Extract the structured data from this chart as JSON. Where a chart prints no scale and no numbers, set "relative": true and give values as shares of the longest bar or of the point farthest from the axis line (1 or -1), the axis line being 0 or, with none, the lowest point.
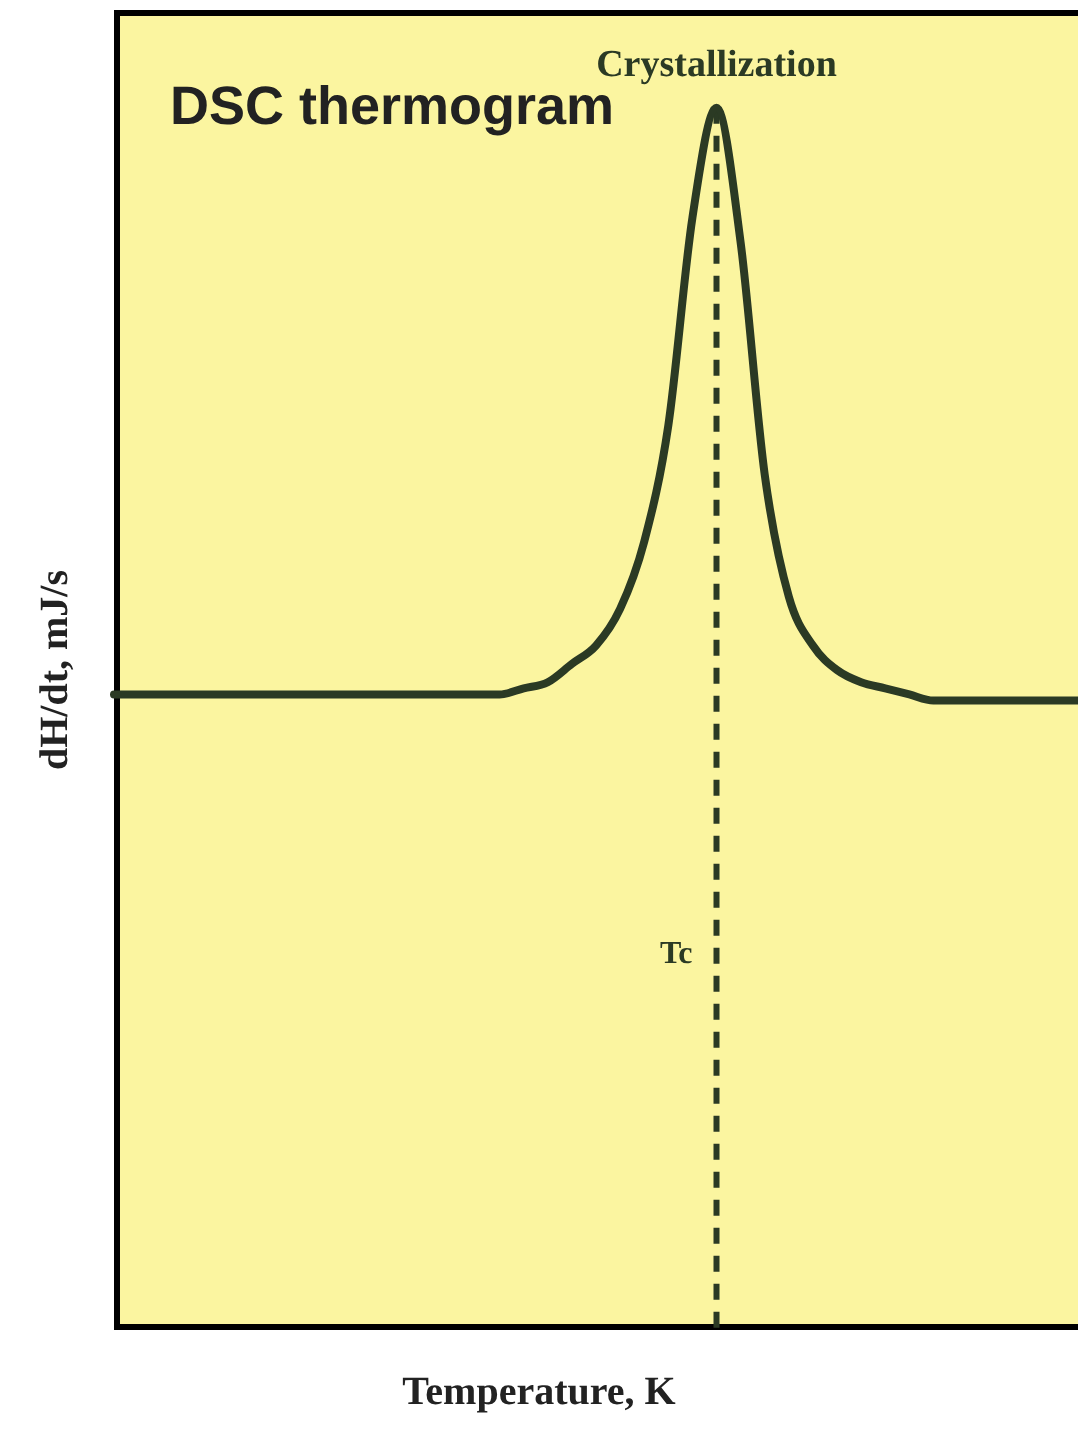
{
  "chart_data": {
    "type": "line",
    "title": "DSC thermogram",
    "xlabel": "Temperature, K",
    "ylabel": "dH/dt, mJ/s",
    "relative": true,
    "categories": [
      null,
      null,
      null,
      null,
      null,
      null,
      null,
      null,
      null,
      null,
      null,
      null,
      null,
      null,
      null,
      null,
      null,
      null,
      null,
      null,
      null,
      null,
      null,
      null,
      null,
      null,
      null,
      null,
      null,
      null,
      null,
      null,
      null,
      null,
      null,
      null,
      null,
      null,
      null,
      null,
      null
    ],
    "series": [
      {
        "color": "#2b3a24",
        "values": [
          0.52,
          0.52,
          0.52,
          0.52,
          0.52,
          0.52,
          0.52,
          0.52,
          0.52,
          0.52,
          0.52,
          0.52,
          0.52,
          0.52,
          0.52,
          0.52,
          0.52,
          0.525,
          0.53,
          0.545,
          0.56,
          0.59,
          0.645,
          0.74,
          0.91,
          1,
          0.89,
          0.7,
          0.6,
          0.56,
          0.54,
          0.53,
          0.525,
          0.52,
          0.515,
          0.515,
          0.515,
          0.515,
          0.515,
          0.515,
          0.515
        ]
      }
    ],
    "annotations": [
      {
        "text": "Crystallization",
        "y": 1
      },
      "Tc"
    ],
    "marker": "none",
    "line_style": "solid",
    "grid": false,
    "legend": false
  }
}
